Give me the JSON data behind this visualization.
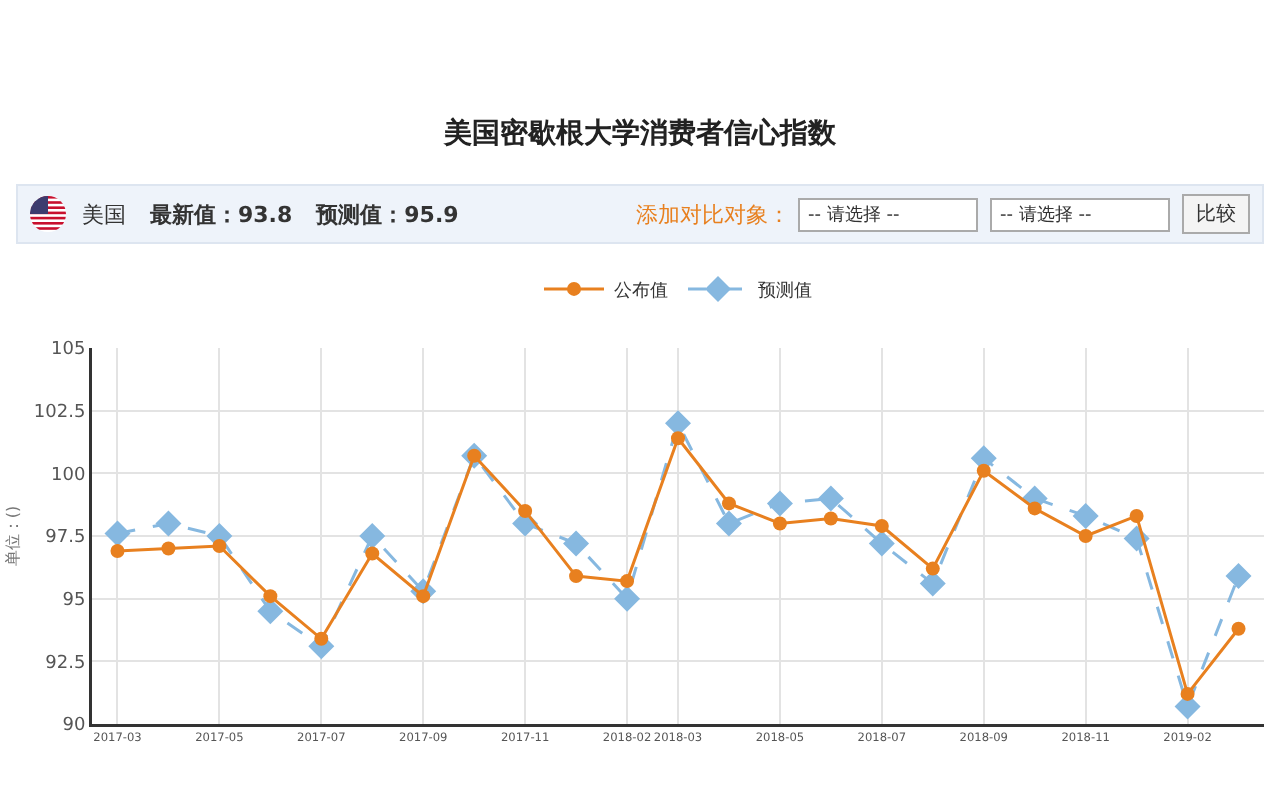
{
  "chart_data": {
    "type": "line",
    "title": "美国密歇根大学消费者信心指数",
    "annotations": [
      "美国",
      "最新值：93.8",
      "预测值：95.9",
      "添加对比对象：",
      "-- 请选择 --",
      "-- 请选择 --",
      "比较"
    ],
    "ylabel": "单位：()",
    "categories": [
      "2017-03",
      null,
      "2017-05",
      null,
      "2017-07",
      null,
      "2017-09",
      null,
      "2017-11",
      null,
      "2018-02",
      "2018-03",
      null,
      "2018-05",
      null,
      "2018-07",
      null,
      "2018-09",
      null,
      "2018-11",
      null,
      "2019-02",
      null
    ],
    "series": [
      {
        "name": "公布值",
        "color": "#e8801f",
        "marker": "circle",
        "line_style": "solid",
        "values": [
          96.9,
          97.0,
          97.1,
          95.1,
          93.4,
          96.8,
          95.1,
          100.7,
          98.5,
          95.9,
          95.7,
          101.4,
          98.8,
          98.0,
          98.2,
          97.9,
          96.2,
          100.1,
          98.6,
          97.5,
          98.3,
          91.2,
          93.8
        ]
      },
      {
        "name": "预测值",
        "color": "#86b8e0",
        "marker": "diamond",
        "line_style": "dashed",
        "values": [
          97.6,
          98.0,
          97.5,
          94.5,
          93.1,
          97.5,
          95.3,
          100.7,
          98.0,
          97.2,
          95.0,
          102.0,
          98.0,
          98.8,
          99.0,
          97.2,
          95.6,
          100.6,
          99.0,
          98.3,
          97.4,
          90.7,
          95.9
        ]
      }
    ],
    "ylim": [
      90,
      105
    ],
    "yticks": [
      90,
      92.5,
      95,
      97.5,
      100,
      102.5,
      105
    ],
    "grid": true,
    "legend": "top"
  }
}
